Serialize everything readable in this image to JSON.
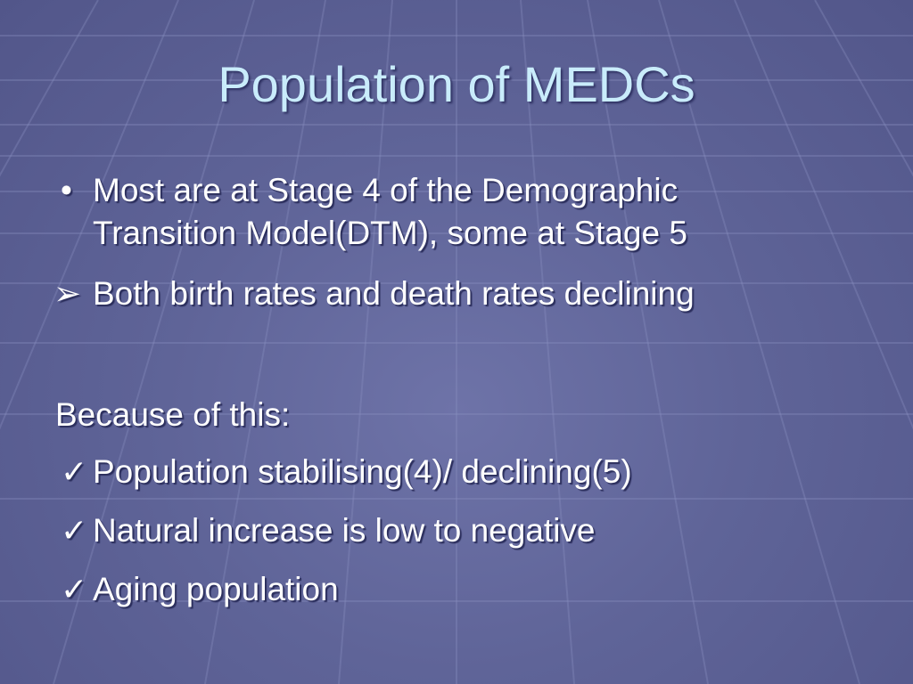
{
  "slide": {
    "title": "Population of MEDCs",
    "bullet1": {
      "marker": "•",
      "lines": [
        "Most are at Stage 4 of the Demographic",
        "Transition Model(DTM), some at Stage 5"
      ]
    },
    "arrow_item": {
      "marker": "➢",
      "text": "Both birth rates and death rates declining"
    },
    "because": "Because of this:",
    "checks": [
      {
        "marker": "✓",
        "text": "Population stabilising(4)/ declining(5)"
      },
      {
        "marker": "✓",
        "text": "Natural increase is low to negative"
      },
      {
        "marker": "✓",
        "text": "Aging population"
      }
    ]
  },
  "colors": {
    "background": "#5f6498",
    "title": "#c9ecfb",
    "text": "#ffffff"
  }
}
